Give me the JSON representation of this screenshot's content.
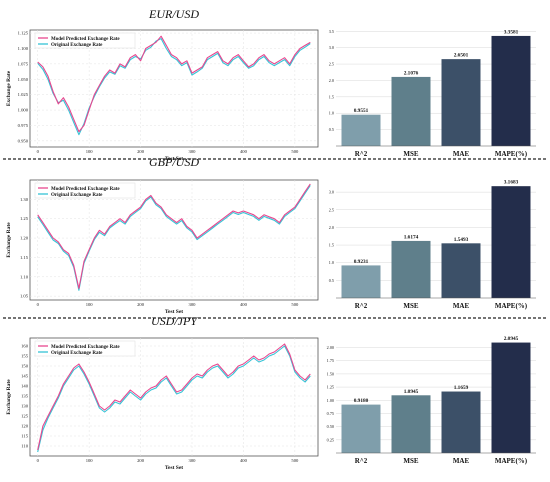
{
  "chart_data": [
    {
      "type": "line",
      "title": "EUR/USD",
      "xlabel": "Test Set",
      "ylabel": "Exchange Rate",
      "xlim": [
        -15,
        545
      ],
      "ylim": [
        0.94,
        1.13
      ],
      "xticks": [
        0,
        100,
        200,
        300,
        400,
        500
      ],
      "yticks": [
        0.95,
        0.975,
        1.0,
        1.025,
        1.05,
        1.075,
        1.1,
        1.125
      ],
      "ytick_labels": [
        "0.950",
        "0.975",
        "1.000",
        "1.025",
        "1.050",
        "1.075",
        "1.100",
        "1.125"
      ],
      "grid": true,
      "legend": "top-left",
      "series": [
        {
          "name": "Model Predicted Exchange Rate",
          "color": "#e8478f",
          "x": [
            0,
            10,
            20,
            30,
            40,
            50,
            60,
            70,
            80,
            90,
            100,
            110,
            120,
            130,
            140,
            150,
            160,
            170,
            180,
            190,
            200,
            210,
            220,
            230,
            240,
            250,
            260,
            270,
            280,
            290,
            300,
            310,
            320,
            330,
            340,
            350,
            360,
            370,
            380,
            390,
            400,
            410,
            420,
            430,
            440,
            450,
            460,
            470,
            480,
            490,
            500,
            510,
            520,
            530
          ],
          "y": [
            1.078,
            1.07,
            1.055,
            1.03,
            1.01,
            1.02,
            1.005,
            0.985,
            0.965,
            0.975,
            1.0,
            1.025,
            1.04,
            1.055,
            1.065,
            1.06,
            1.075,
            1.07,
            1.085,
            1.09,
            1.08,
            1.1,
            1.105,
            1.11,
            1.12,
            1.105,
            1.09,
            1.085,
            1.075,
            1.08,
            1.06,
            1.065,
            1.07,
            1.085,
            1.09,
            1.095,
            1.08,
            1.075,
            1.085,
            1.09,
            1.08,
            1.07,
            1.075,
            1.085,
            1.09,
            1.08,
            1.075,
            1.08,
            1.085,
            1.075,
            1.09,
            1.1,
            1.105,
            1.11
          ]
        },
        {
          "name": "Original Exchange Rate",
          "color": "#36c4d6",
          "x": [
            0,
            10,
            20,
            30,
            40,
            50,
            60,
            70,
            80,
            90,
            100,
            110,
            120,
            130,
            140,
            150,
            160,
            170,
            180,
            190,
            200,
            210,
            220,
            230,
            240,
            250,
            260,
            270,
            280,
            290,
            300,
            310,
            320,
            330,
            340,
            350,
            360,
            370,
            380,
            390,
            400,
            410,
            420,
            430,
            440,
            450,
            460,
            470,
            480,
            490,
            500,
            510,
            520,
            530
          ],
          "y": [
            1.076,
            1.066,
            1.05,
            1.027,
            1.012,
            1.016,
            1.0,
            0.98,
            0.96,
            0.978,
            1.003,
            1.022,
            1.038,
            1.052,
            1.062,
            1.058,
            1.072,
            1.068,
            1.082,
            1.087,
            1.083,
            1.097,
            1.102,
            1.112,
            1.116,
            1.1,
            1.087,
            1.082,
            1.072,
            1.077,
            1.057,
            1.062,
            1.068,
            1.082,
            1.087,
            1.092,
            1.077,
            1.072,
            1.082,
            1.087,
            1.077,
            1.068,
            1.072,
            1.082,
            1.087,
            1.077,
            1.072,
            1.077,
            1.082,
            1.072,
            1.087,
            1.097,
            1.102,
            1.108
          ]
        }
      ]
    },
    {
      "type": "bar",
      "categories": [
        "R^2",
        "MSE",
        "MAE",
        "MAPE(%)"
      ],
      "values": [
        0.9551,
        2.1076,
        2.6501,
        3.3581
      ],
      "value_labels": [
        "0.9551",
        "2.1076",
        "2.6501",
        "3.3581"
      ],
      "ylim": [
        0,
        3.6
      ],
      "yticks": [
        0.5,
        1.0,
        1.5,
        2.0,
        2.5,
        3.0,
        3.5
      ],
      "ytick_labels": [
        "0.5",
        "1.0",
        "1.5",
        "2.0",
        "2.5",
        "3.0",
        "3.5"
      ],
      "colors": [
        "#7f9eab",
        "#5f7f8b",
        "#3c5068",
        "#232d4b"
      ],
      "grid": true
    },
    {
      "type": "line",
      "title": "GBP/USD",
      "xlabel": "Test Set",
      "ylabel": "Exchange Rate",
      "xlim": [
        -15,
        545
      ],
      "ylim": [
        1.04,
        1.35
      ],
      "xticks": [
        0,
        100,
        200,
        300,
        400,
        500
      ],
      "yticks": [
        1.05,
        1.1,
        1.15,
        1.2,
        1.25,
        1.3
      ],
      "ytick_labels": [
        "1.05",
        "1.10",
        "1.15",
        "1.20",
        "1.25",
        "1.30"
      ],
      "grid": true,
      "legend": "top-left",
      "series": [
        {
          "name": "Model Predicted Exchange Rate",
          "color": "#e8478f",
          "x": [
            0,
            10,
            20,
            30,
            40,
            50,
            60,
            70,
            80,
            90,
            100,
            110,
            120,
            130,
            140,
            150,
            160,
            170,
            180,
            190,
            200,
            210,
            220,
            230,
            240,
            250,
            260,
            270,
            280,
            290,
            300,
            310,
            320,
            330,
            340,
            350,
            360,
            370,
            380,
            390,
            400,
            410,
            420,
            430,
            440,
            450,
            460,
            470,
            480,
            490,
            500,
            510,
            520,
            530
          ],
          "y": [
            1.26,
            1.24,
            1.22,
            1.2,
            1.19,
            1.17,
            1.16,
            1.13,
            1.07,
            1.14,
            1.17,
            1.2,
            1.22,
            1.21,
            1.23,
            1.24,
            1.25,
            1.24,
            1.26,
            1.27,
            1.28,
            1.3,
            1.31,
            1.29,
            1.28,
            1.26,
            1.25,
            1.24,
            1.25,
            1.23,
            1.22,
            1.2,
            1.21,
            1.22,
            1.23,
            1.24,
            1.25,
            1.26,
            1.27,
            1.265,
            1.27,
            1.265,
            1.26,
            1.25,
            1.26,
            1.255,
            1.25,
            1.24,
            1.26,
            1.27,
            1.28,
            1.3,
            1.32,
            1.34
          ]
        },
        {
          "name": "Original Exchange Rate",
          "color": "#36c4d6",
          "x": [
            0,
            10,
            20,
            30,
            40,
            50,
            60,
            70,
            80,
            90,
            100,
            110,
            120,
            130,
            140,
            150,
            160,
            170,
            180,
            190,
            200,
            210,
            220,
            230,
            240,
            250,
            260,
            270,
            280,
            290,
            300,
            310,
            320,
            330,
            340,
            350,
            360,
            370,
            380,
            390,
            400,
            410,
            420,
            430,
            440,
            450,
            460,
            470,
            480,
            490,
            500,
            510,
            520,
            530
          ],
          "y": [
            1.255,
            1.235,
            1.215,
            1.195,
            1.186,
            1.166,
            1.155,
            1.125,
            1.065,
            1.135,
            1.166,
            1.196,
            1.215,
            1.206,
            1.226,
            1.236,
            1.245,
            1.236,
            1.256,
            1.266,
            1.276,
            1.296,
            1.306,
            1.286,
            1.276,
            1.256,
            1.246,
            1.236,
            1.245,
            1.226,
            1.216,
            1.196,
            1.206,
            1.216,
            1.226,
            1.236,
            1.246,
            1.256,
            1.266,
            1.261,
            1.266,
            1.261,
            1.256,
            1.246,
            1.256,
            1.251,
            1.246,
            1.236,
            1.256,
            1.266,
            1.276,
            1.296,
            1.316,
            1.336
          ]
        }
      ]
    },
    {
      "type": "bar",
      "categories": [
        "R^2",
        "MSE",
        "MAE",
        "MAPE(%)"
      ],
      "values": [
        0.9231,
        1.6174,
        1.5493,
        3.1683
      ],
      "value_labels": [
        "0.9231",
        "1.6174",
        "1.5493",
        "3.1683"
      ],
      "ylim": [
        0,
        3.4
      ],
      "yticks": [
        0.5,
        1.0,
        1.5,
        2.0,
        2.5,
        3.0
      ],
      "ytick_labels": [
        "0.5",
        "1.0",
        "1.5",
        "2.0",
        "2.5",
        "3.0"
      ],
      "colors": [
        "#7f9eab",
        "#5f7f8b",
        "#3c5068",
        "#232d4b"
      ],
      "grid": true
    },
    {
      "type": "line",
      "title": "USD/JPY",
      "xlabel": "Test Set",
      "ylabel": "Exchange Rate",
      "xlim": [
        -15,
        545
      ],
      "ylim": [
        105,
        164
      ],
      "xticks": [
        0,
        100,
        200,
        300,
        400,
        500
      ],
      "yticks": [
        110,
        115,
        120,
        125,
        130,
        135,
        140,
        145,
        150,
        155,
        160
      ],
      "ytick_labels": [
        "110",
        "115",
        "120",
        "125",
        "130",
        "135",
        "140",
        "145",
        "150",
        "155",
        "160"
      ],
      "grid": true,
      "legend": "top-left",
      "series": [
        {
          "name": "Model Predicted Exchange Rate",
          "color": "#e8478f",
          "x": [
            0,
            10,
            20,
            30,
            40,
            50,
            60,
            70,
            80,
            90,
            100,
            110,
            120,
            130,
            140,
            150,
            160,
            170,
            180,
            190,
            200,
            210,
            220,
            230,
            240,
            250,
            260,
            270,
            280,
            290,
            300,
            310,
            320,
            330,
            340,
            350,
            360,
            370,
            380,
            390,
            400,
            410,
            420,
            430,
            440,
            450,
            460,
            470,
            480,
            490,
            500,
            510,
            520,
            530
          ],
          "y": [
            108,
            120,
            125,
            130,
            135,
            141,
            145,
            149,
            151,
            147,
            142,
            136,
            130,
            128,
            130,
            133,
            132,
            135,
            138,
            136,
            134,
            137,
            139,
            140,
            143,
            145,
            141,
            137,
            138,
            141,
            144,
            146,
            145,
            148,
            150,
            151,
            148,
            145,
            147,
            150,
            151,
            153,
            155,
            153,
            154,
            156,
            157,
            159,
            161,
            156,
            148,
            145,
            143,
            146
          ]
        },
        {
          "name": "Original Exchange Rate",
          "color": "#36c4d6",
          "x": [
            0,
            10,
            20,
            30,
            40,
            50,
            60,
            70,
            80,
            90,
            100,
            110,
            120,
            130,
            140,
            150,
            160,
            170,
            180,
            190,
            200,
            210,
            220,
            230,
            240,
            250,
            260,
            270,
            280,
            290,
            300,
            310,
            320,
            330,
            340,
            350,
            360,
            370,
            380,
            390,
            400,
            410,
            420,
            430,
            440,
            450,
            460,
            470,
            480,
            490,
            500,
            510,
            520,
            530
          ],
          "y": [
            107,
            118,
            124,
            129,
            134,
            140,
            144,
            148,
            150,
            146,
            141,
            135,
            129,
            127,
            129,
            132,
            131,
            134,
            137,
            135,
            133,
            136,
            138,
            139,
            142,
            144,
            140,
            136,
            137,
            140,
            143,
            145,
            144,
            147,
            149,
            150,
            147,
            144,
            146,
            149,
            150,
            152,
            154,
            152,
            153,
            155,
            156,
            158,
            160,
            155,
            147,
            144,
            142,
            145
          ]
        }
      ]
    },
    {
      "type": "bar",
      "categories": [
        "R^2",
        "MSE",
        "MAE",
        "MAPE(%)"
      ],
      "values": [
        0.918,
        1.0945,
        1.1659,
        2.0945
      ],
      "value_labels": [
        "0.9180",
        "1.0945",
        "1.1659",
        "2.0945"
      ],
      "ylim": [
        0,
        2.2
      ],
      "yticks": [
        0.25,
        0.5,
        0.75,
        1.0,
        1.25,
        1.5,
        1.75,
        2.0
      ],
      "ytick_labels": [
        "0.25",
        "0.50",
        "0.75",
        "1.00",
        "1.25",
        "1.50",
        "1.75",
        "2.00"
      ],
      "colors": [
        "#7f9eab",
        "#5f7f8b",
        "#3c5068",
        "#232d4b"
      ],
      "grid": true
    }
  ]
}
